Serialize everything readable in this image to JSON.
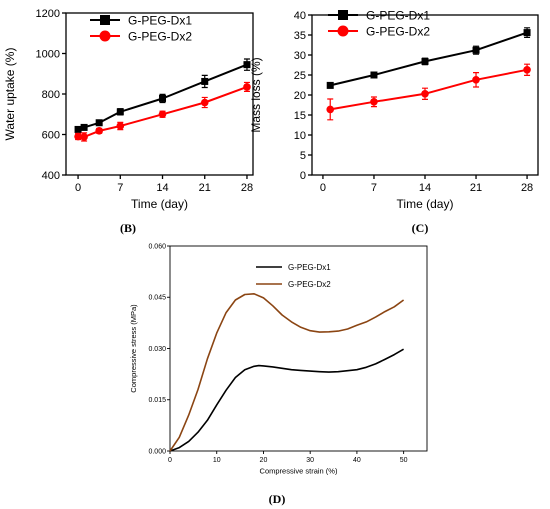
{
  "chart_data": [
    {
      "id": "B",
      "type": "line",
      "panel_label": "(B)",
      "title": "",
      "xlabel": "Time (day)",
      "ylabel": "Water uptake (%)",
      "xlim": [
        -2,
        29
      ],
      "ylim": [
        400,
        1200
      ],
      "xticks": [
        0,
        7,
        14,
        21,
        28
      ],
      "yticks": [
        400,
        600,
        800,
        1000,
        1200
      ],
      "grid": false,
      "legend": "top-left",
      "series": [
        {
          "name": "G-PEG-Dx1",
          "color": "#000000",
          "marker": "square",
          "x": [
            0,
            1,
            3.5,
            7,
            14,
            21,
            28
          ],
          "y": [
            625,
            635,
            658,
            712,
            778,
            862,
            945
          ],
          "err": [
            8,
            8,
            10,
            15,
            20,
            30,
            28
          ]
        },
        {
          "name": "G-PEG-Dx2",
          "color": "#ff0000",
          "marker": "circle",
          "x": [
            0,
            1,
            3.5,
            7,
            14,
            21,
            28
          ],
          "y": [
            590,
            588,
            618,
            642,
            700,
            758,
            835
          ],
          "err": [
            15,
            20,
            12,
            18,
            15,
            25,
            22
          ]
        }
      ]
    },
    {
      "id": "C",
      "type": "line",
      "panel_label": "(C)",
      "title": "",
      "xlabel": "Time (day)",
      "ylabel": "Mass loss (%)",
      "xlim": [
        -1.5,
        29.5
      ],
      "ylim": [
        0,
        40
      ],
      "xticks": [
        0,
        7,
        14,
        21,
        28
      ],
      "yticks": [
        0,
        5,
        10,
        15,
        20,
        25,
        30,
        35,
        40
      ],
      "grid": false,
      "legend": "top-left",
      "series": [
        {
          "name": "G-PEG-Dx1",
          "color": "#000000",
          "marker": "square",
          "x": [
            1,
            7,
            14,
            21,
            28
          ],
          "y": [
            22.4,
            25.0,
            28.4,
            31.2,
            35.6
          ],
          "err": [
            0.3,
            0.4,
            0.8,
            1.0,
            1.2
          ]
        },
        {
          "name": "G-PEG-Dx2",
          "color": "#ff0000",
          "marker": "circle",
          "x": [
            1,
            7,
            14,
            21,
            28
          ],
          "y": [
            16.4,
            18.3,
            20.3,
            23.8,
            26.3
          ],
          "err": [
            2.6,
            1.2,
            1.4,
            1.8,
            1.4
          ]
        }
      ]
    },
    {
      "id": "D",
      "type": "line",
      "panel_label": "(D)",
      "title": "",
      "xlabel": "Compressive strain (%)",
      "ylabel": "Compressive stress (MPa)",
      "xlim": [
        0,
        55
      ],
      "ylim": [
        0,
        0.06
      ],
      "xticks": [
        0,
        10,
        20,
        30,
        40,
        50
      ],
      "yticks": [
        "0.000",
        "0.015",
        "0.030",
        "0.045",
        "0.060"
      ],
      "grid": false,
      "legend": "top-right",
      "series": [
        {
          "name": "G-PEG-Dx1",
          "color": "#000000",
          "x": [
            0,
            2,
            4,
            6,
            8,
            10,
            12,
            14,
            16,
            18,
            19,
            20,
            22,
            24,
            26,
            28,
            30,
            32,
            34,
            36,
            38,
            40,
            42,
            44,
            46,
            48,
            50
          ],
          "y": [
            0,
            0.001,
            0.0028,
            0.0055,
            0.009,
            0.0135,
            0.0178,
            0.0215,
            0.0238,
            0.0248,
            0.025,
            0.0249,
            0.0246,
            0.0242,
            0.0238,
            0.0236,
            0.0234,
            0.0232,
            0.0231,
            0.0232,
            0.0235,
            0.0238,
            0.0245,
            0.0255,
            0.0268,
            0.0282,
            0.0298
          ]
        },
        {
          "name": "G-PEG-Dx2",
          "color": "#8b4513",
          "x": [
            0,
            2,
            4,
            6,
            8,
            10,
            12,
            14,
            16,
            18,
            20,
            22,
            24,
            26,
            28,
            30,
            32,
            34,
            36,
            38,
            40,
            42,
            44,
            46,
            48,
            50
          ],
          "y": [
            0,
            0.004,
            0.0105,
            0.018,
            0.027,
            0.0345,
            0.0405,
            0.0442,
            0.0458,
            0.046,
            0.0448,
            0.0425,
            0.0398,
            0.0378,
            0.0362,
            0.0352,
            0.0348,
            0.0349,
            0.0351,
            0.0357,
            0.0368,
            0.0378,
            0.0392,
            0.0408,
            0.0422,
            0.0442
          ]
        }
      ]
    }
  ]
}
